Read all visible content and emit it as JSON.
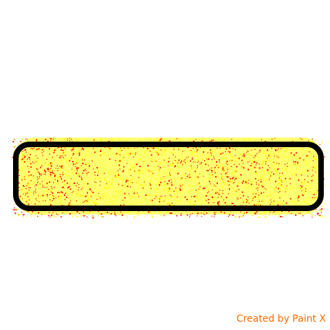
{
  "watermark": {
    "text": "Created by Paint X",
    "color": "#ff6a00"
  },
  "painting": {
    "shape": "rounded-rectangle-outline",
    "outline_color": "#000000",
    "spray_colors": [
      "#ffff00",
      "#ff0000"
    ],
    "background": "#ffffff"
  }
}
